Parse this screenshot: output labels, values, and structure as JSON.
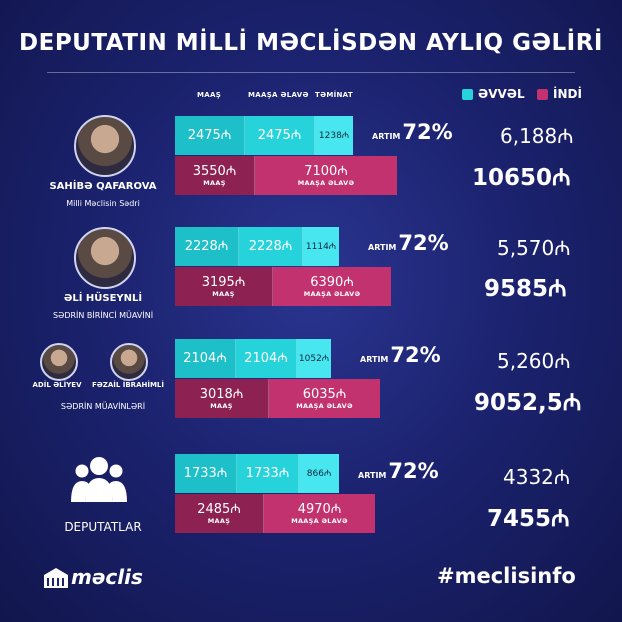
{
  "title": "DEPUTATIN MİLLİ MƏCLİSDƏN AYLIQ GƏLİRİ",
  "headers": {
    "maas": "MAAŞ",
    "maasa_elave": "MAAŞA ƏLAVƏ",
    "teminat": "TƏMİNAT"
  },
  "legend": {
    "evvel": "ƏVVƏL",
    "indi": "İNDİ",
    "evvel_color": "#26d3da",
    "indi_color": "#c2326f"
  },
  "colors": {
    "background": "#1c2370",
    "teal": "#26d3da",
    "magenta": "#c2326f",
    "dark_magenta": "#8c2152"
  },
  "currency": "₼",
  "artim_label": "ARTIM",
  "rows": [
    {
      "names": [
        "SAHİBƏ QAFAROVA"
      ],
      "subtitle": "Milli Məclisin Sədri",
      "before": {
        "maas": "2475₼",
        "maasa_elave": "2475₼",
        "teminat": "1238₼",
        "total": "6,188₼"
      },
      "after": {
        "maas": "3550₼",
        "maas_label": "MAAŞ",
        "maasa_elave": "7100₼",
        "maasa_elave_label": "MAAŞA ƏLAVƏ",
        "total": "10650₼"
      },
      "increase": "72%"
    },
    {
      "names": [
        "ƏLİ HÜSEYNLİ"
      ],
      "subtitle": "SƏDRİN BİRİNCİ MÜAVİNİ",
      "before": {
        "maas": "2228₼",
        "maasa_elave": "2228₼",
        "teminat": "1114₼",
        "total": "5,570₼"
      },
      "after": {
        "maas": "3195₼",
        "maas_label": "MAAŞ",
        "maasa_elave": "6390₼",
        "maasa_elave_label": "MAAŞA ƏLAVƏ",
        "total": "9585₼"
      },
      "increase": "72%"
    },
    {
      "names": [
        "ADİL ƏLİYEV",
        "FƏZAİL İBRAHİMLİ"
      ],
      "subtitle": "SƏDRİN MÜAVİNLƏRİ",
      "before": {
        "maas": "2104₼",
        "maasa_elave": "2104₼",
        "teminat": "1052₼",
        "total": "5,260₼"
      },
      "after": {
        "maas": "3018₼",
        "maas_label": "MAAŞ",
        "maasa_elave": "6035₼",
        "maasa_elave_label": "MAAŞA ƏLAVƏ",
        "total": "9052,5₼"
      },
      "increase": "72%"
    },
    {
      "names": [
        "DEPUTATLAR"
      ],
      "subtitle": "",
      "before": {
        "maas": "1733₼",
        "maasa_elave": "1733₼",
        "teminat": "866₼",
        "total": "4332₼"
      },
      "after": {
        "maas": "2485₼",
        "maas_label": "MAAŞ",
        "maasa_elave": "4970₼",
        "maasa_elave_label": "MAAŞA ƏLAVƏ",
        "total": "7455₼"
      },
      "increase": "72%"
    }
  ],
  "footer": {
    "brand": "məclis",
    "hashtag": "#meclisinfo"
  },
  "chart_data": {
    "type": "bar",
    "title": "DEPUTATIN MİLLİ MƏCLİSDƏN AYLIQ GƏLİRİ",
    "categories": [
      "SAHİBƏ QAFAROVA",
      "ƏLİ HÜSEYNLİ",
      "SƏDRİN MÜAVİNLƏRİ",
      "DEPUTATLAR"
    ],
    "stacked": true,
    "series": [
      {
        "name": "ƏVVƏL",
        "components": {
          "MAAŞ": [
            2475,
            2228,
            2104,
            1733
          ],
          "MAAŞA ƏLAVƏ": [
            2475,
            2228,
            2104,
            1733
          ],
          "TƏMİNAT": [
            1238,
            1114,
            1052,
            866
          ]
        },
        "totals": [
          6188,
          5570,
          5260,
          4332
        ]
      },
      {
        "name": "İNDİ",
        "components": {
          "MAAŞ": [
            3550,
            3195,
            3018,
            2485
          ],
          "MAAŞA ƏLAVƏ": [
            7100,
            6390,
            6035,
            4970
          ]
        },
        "totals": [
          10650,
          9585,
          9052.5,
          7455
        ]
      }
    ],
    "increase_percent": [
      72,
      72,
      72,
      72
    ]
  }
}
